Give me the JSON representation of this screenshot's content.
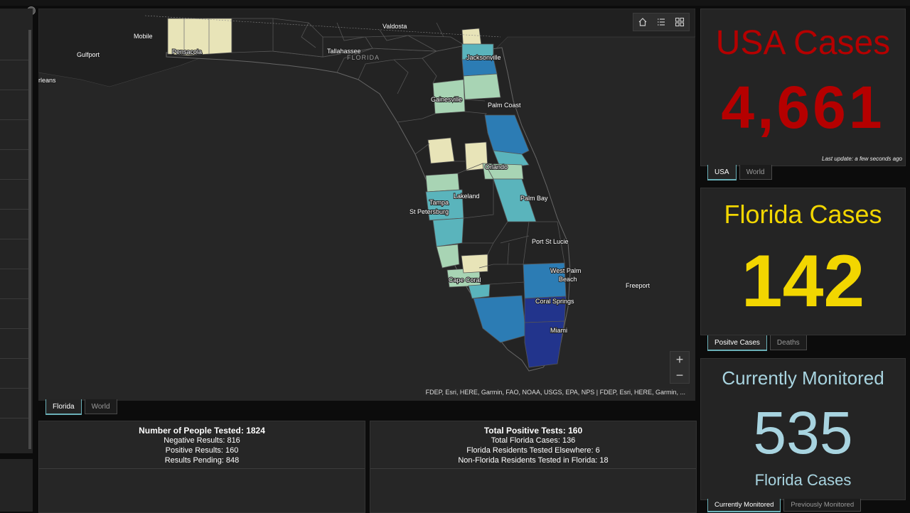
{
  "map": {
    "labels": {
      "valdosta": "Valdosta",
      "mobile": "Mobile",
      "gulfport": "Gulfport",
      "orleans": "rleans",
      "tallahassee": "Tallahassee",
      "florida": "FLORIDA",
      "pensacola": "Pensacola",
      "jacksonville": "Jacksonville",
      "gainesville": "Gainesville",
      "palm_coast": "Palm Coast",
      "orlando": "Orlando",
      "lakeland": "Lakeland",
      "tampa": "Tampa",
      "st_petersburg": "St Petersburg",
      "palm_bay": "Palm Bay",
      "port_st_lucie": "Port St Lucie",
      "west_palm_1": "West Palm",
      "west_palm_2": "Beach",
      "freeport": "Freeport",
      "cape_coral": "Cape Coral",
      "coral_springs": "Coral Springs",
      "miami": "Miami"
    },
    "attribution": "FDEP, Esri, HERE, Garmin, FAO, NOAA, USGS, EPA, NPS | FDEP, Esri, HERE, Garmin, ...",
    "tools": {
      "home_icon": "home-icon",
      "legend_icon": "legend-list-icon",
      "basemap_icon": "basemap-gallery-icon"
    },
    "zoom_in": "+",
    "zoom_out": "−",
    "tabs": [
      "Florida",
      "World"
    ],
    "colors": {
      "light": "#e8e4b8",
      "pale_green": "#a8d4b4",
      "teal": "#5ab4bc",
      "mid_blue": "#2c7cb4",
      "dark_blue": "#22348c",
      "base": "#232323"
    }
  },
  "tested_panel": {
    "title": "Number of People Tested: 1824",
    "lines": [
      "Negative Results:  816",
      "Positive Results:  160",
      "Results Pending: 848"
    ]
  },
  "positive_panel": {
    "title": "Total Positive Tests: 160",
    "lines": [
      "Total Florida Cases: 136",
      "Florida Residents Tested Elsewhere: 6",
      "Non-Florida Residents Tested in Florida: 18"
    ]
  },
  "usa": {
    "title": "USA Cases",
    "value": "4,661",
    "update": "Last update: a few seconds ago",
    "tabs": [
      "USA",
      "World"
    ],
    "color": "#b50000"
  },
  "florida": {
    "title": "Florida Cases",
    "value": "142",
    "tabs": [
      "Positve Cases",
      "Deaths"
    ],
    "color": "#f2d600"
  },
  "monitored": {
    "title": "Currently Monitored",
    "value": "535",
    "subtitle": "Florida Cases",
    "tabs": [
      "Currently Monitored",
      "Previously Monitored"
    ],
    "color": "#a8d4e0"
  }
}
